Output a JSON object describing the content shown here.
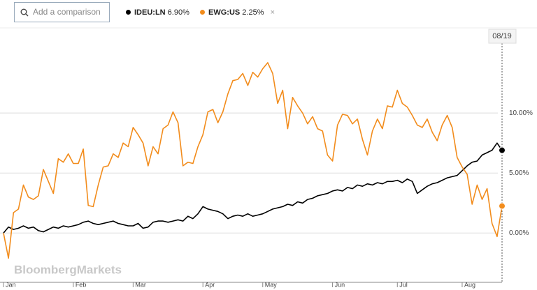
{
  "search_placeholder": "Add a comparison",
  "chart_data": {
    "type": "line",
    "watermark": "BloombergMarkets",
    "end_label": "08/19",
    "categories": [
      "Jan",
      null,
      null,
      null,
      null,
      null,
      null,
      null,
      null,
      null,
      null,
      null,
      null,
      null,
      "Feb",
      null,
      null,
      null,
      null,
      null,
      null,
      null,
      null,
      null,
      null,
      null,
      "Mar",
      null,
      null,
      null,
      null,
      null,
      null,
      null,
      null,
      null,
      null,
      null,
      null,
      null,
      "Apr",
      null,
      null,
      null,
      null,
      null,
      null,
      null,
      null,
      null,
      null,
      null,
      "May",
      null,
      null,
      null,
      null,
      null,
      null,
      null,
      null,
      null,
      null,
      null,
      null,
      null,
      "Jun",
      null,
      null,
      null,
      null,
      null,
      null,
      null,
      null,
      null,
      null,
      null,
      null,
      "Jul",
      null,
      null,
      null,
      null,
      null,
      null,
      null,
      null,
      null,
      null,
      null,
      null,
      "Aug",
      null,
      null,
      null,
      null,
      null,
      null,
      null,
      null
    ],
    "series": [
      {
        "name": "IDEU:LN",
        "legend_value": "6.90%",
        "color": "#000000",
        "values": [
          0,
          0.5,
          0.3,
          0.4,
          0.6,
          0.4,
          0.5,
          0.2,
          0.1,
          0.3,
          0.5,
          0.4,
          0.6,
          0.5,
          0.6,
          0.7,
          0.9,
          1.0,
          0.8,
          0.7,
          0.8,
          0.9,
          1.0,
          0.8,
          0.7,
          0.6,
          0.6,
          0.8,
          0.4,
          0.5,
          0.9,
          1.0,
          1.0,
          0.9,
          1.0,
          1.1,
          1.0,
          1.4,
          1.2,
          1.6,
          2.2,
          2.0,
          1.9,
          1.8,
          1.6,
          1.2,
          1.4,
          1.5,
          1.4,
          1.6,
          1.4,
          1.5,
          1.6,
          1.8,
          2.0,
          2.1,
          2.2,
          2.4,
          2.3,
          2.6,
          2.5,
          2.8,
          2.9,
          3.1,
          3.2,
          3.3,
          3.5,
          3.6,
          3.5,
          3.8,
          3.7,
          4.0,
          3.9,
          4.1,
          4.0,
          4.2,
          4.1,
          4.3,
          4.3,
          4.4,
          4.2,
          4.5,
          4.3,
          3.3,
          3.6,
          3.9,
          4.1,
          4.2,
          4.4,
          4.6,
          4.7,
          4.8,
          5.2,
          5.6,
          5.9,
          6.0,
          6.5,
          6.7,
          6.9,
          7.5,
          6.9
        ]
      },
      {
        "name": "EWG:US",
        "legend_value": "2.25%",
        "color": "#f28c1c",
        "values": [
          0,
          -2.1,
          1.7,
          2.0,
          4.0,
          3.0,
          2.8,
          3.1,
          5.3,
          4.3,
          3.3,
          6.2,
          5.9,
          6.6,
          5.8,
          5.8,
          7.0,
          2.3,
          2.2,
          4.0,
          5.5,
          5.6,
          6.6,
          6.3,
          7.5,
          7.2,
          8.8,
          8.2,
          7.5,
          5.6,
          7.2,
          6.6,
          8.7,
          9.0,
          10.1,
          9.2,
          5.6,
          5.9,
          5.8,
          7.2,
          8.2,
          10.1,
          10.3,
          9.2,
          10.1,
          11.6,
          12.7,
          12.8,
          13.3,
          12.3,
          13.4,
          13.0,
          13.7,
          14.2,
          13.3,
          10.8,
          11.9,
          8.7,
          11.3,
          10.6,
          10.0,
          9.1,
          9.7,
          8.7,
          8.5,
          6.5,
          6.0,
          9.0,
          9.9,
          9.8,
          9.1,
          9.5,
          7.8,
          6.5,
          8.5,
          9.5,
          8.7,
          10.6,
          10.5,
          11.9,
          10.8,
          10.5,
          9.8,
          9.0,
          8.8,
          9.5,
          8.4,
          7.7,
          9.0,
          9.8,
          8.8,
          6.3,
          5.5,
          4.9,
          2.4,
          4.0,
          2.8,
          3.7,
          0.8,
          -0.3,
          2.25
        ]
      }
    ],
    "ylim": [
      -4.4,
      17.1
    ],
    "yticks": [
      {
        "value": 0,
        "label": "0.00%"
      },
      {
        "value": 5,
        "label": "5.00%"
      },
      {
        "value": 10,
        "label": "10.00%"
      }
    ],
    "grid": true
  }
}
